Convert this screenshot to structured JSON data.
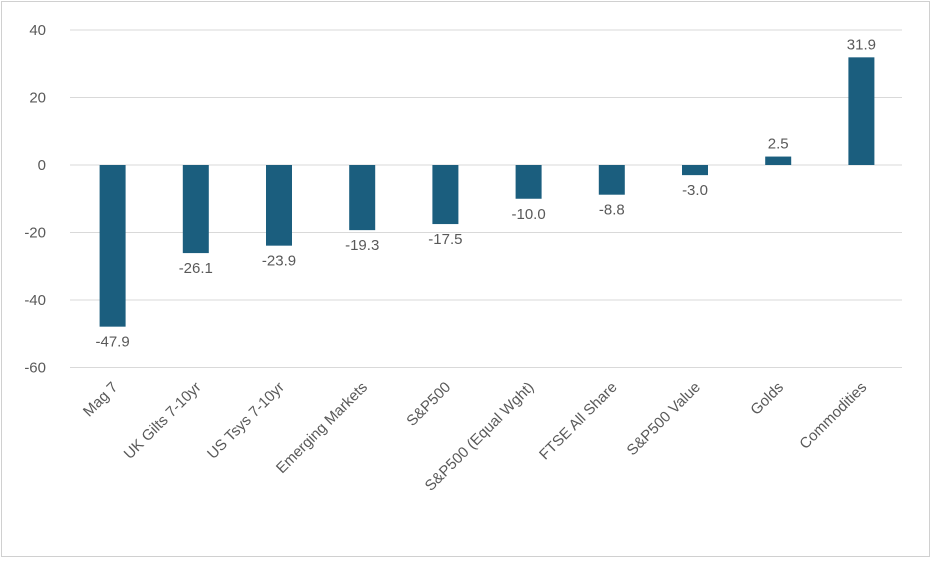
{
  "chart_data": {
    "type": "bar",
    "categories": [
      "Mag 7",
      "UK Gilts 7-10yr",
      "US Tsys 7-10yr",
      "Emerging Markets",
      "S&P500",
      "S&P500 (Equal Wght)",
      "FTSE All Share",
      "S&P500 Value",
      "Golds",
      "Commodities"
    ],
    "values": [
      -47.9,
      -26.1,
      -23.9,
      -19.3,
      -17.5,
      -10.0,
      -8.8,
      -3.0,
      2.5,
      31.9
    ],
    "data_labels": [
      "-47.9",
      "-26.1",
      "-23.9",
      "-19.3",
      "-17.5",
      "-10.0",
      "-8.8",
      "-3.0",
      "2.5",
      "31.9"
    ],
    "y_ticks": [
      40,
      20,
      0,
      -20,
      -40,
      -60
    ],
    "ylim": [
      -60,
      40
    ],
    "grid": true,
    "title": "",
    "xlabel": "",
    "ylabel": "",
    "colors": {
      "bar": "#1b5e7e",
      "grid": "#d9d9d9",
      "text": "#595959"
    }
  }
}
